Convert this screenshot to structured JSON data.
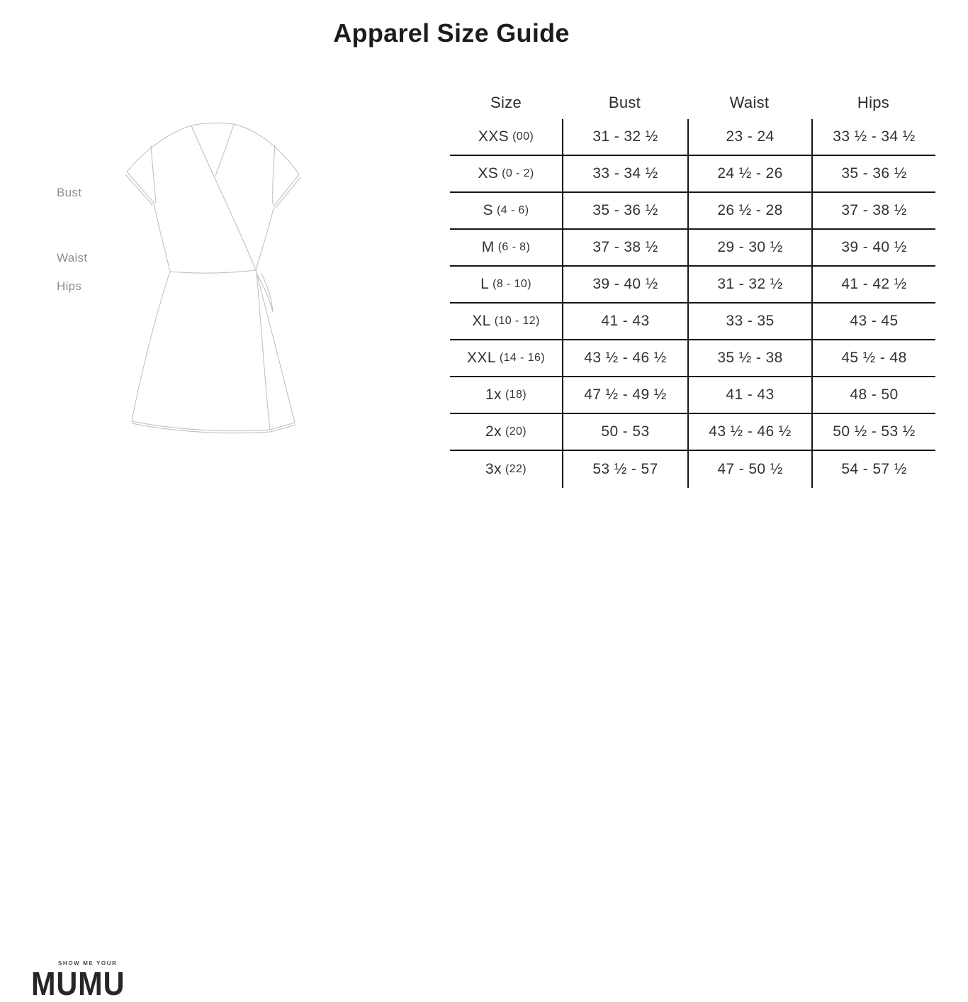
{
  "title": "Apparel Size Guide",
  "figure": {
    "description": "wrap-dress line sketch",
    "labels": {
      "bust": "Bust",
      "waist": "Waist",
      "hips": "Hips"
    }
  },
  "chart_data": {
    "type": "table",
    "title": "Apparel Size Guide",
    "columns": [
      "Size",
      "Bust",
      "Waist",
      "Hips"
    ],
    "rows": [
      {
        "size": "XXS",
        "size_note": "(00)",
        "bust": "31 - 32 ½",
        "waist": "23 - 24",
        "hips": "33 ½ - 34 ½"
      },
      {
        "size": "XS",
        "size_note": "(0 - 2)",
        "bust": "33 - 34 ½",
        "waist": "24 ½ - 26",
        "hips": "35 - 36 ½"
      },
      {
        "size": "S",
        "size_note": "(4 - 6)",
        "bust": "35 - 36 ½",
        "waist": "26 ½ - 28",
        "hips": "37 - 38 ½"
      },
      {
        "size": "M",
        "size_note": "(6 - 8)",
        "bust": "37 - 38 ½",
        "waist": "29 - 30 ½",
        "hips": "39 - 40 ½"
      },
      {
        "size": "L",
        "size_note": "(8 - 10)",
        "bust": "39 - 40 ½",
        "waist": "31 - 32 ½",
        "hips": "41 - 42 ½"
      },
      {
        "size": "XL",
        "size_note": "(10 - 12)",
        "bust": "41 - 43",
        "waist": "33 - 35",
        "hips": "43 - 45"
      },
      {
        "size": "XXL",
        "size_note": "(14 - 16)",
        "bust": "43 ½ - 46 ½",
        "waist": "35 ½ - 38",
        "hips": "45 ½ - 48"
      },
      {
        "size": "1x",
        "size_note": "(18)",
        "bust": "47 ½ - 49 ½",
        "waist": "41 - 43",
        "hips": "48 - 50"
      },
      {
        "size": "2x",
        "size_note": "(20)",
        "bust": "50 - 53",
        "waist": "43 ½ - 46 ½",
        "hips": "50 ½ - 53 ½"
      },
      {
        "size": "3x",
        "size_note": "(22)",
        "bust": "53 ½ - 57",
        "waist": "47 - 50 ½",
        "hips": "54 - 57 ½"
      }
    ]
  },
  "logo": {
    "tagline": "SHOW ME YOUR",
    "brand": "MUMU"
  },
  "colors": {
    "background": "#ffffff",
    "title_text": "#1c1c1c",
    "table_text": "#323232",
    "table_line": "#161616",
    "figure_label": "#8f8f8f",
    "sketch_stroke": "#bcbcbc",
    "logo_text": "#262626"
  }
}
